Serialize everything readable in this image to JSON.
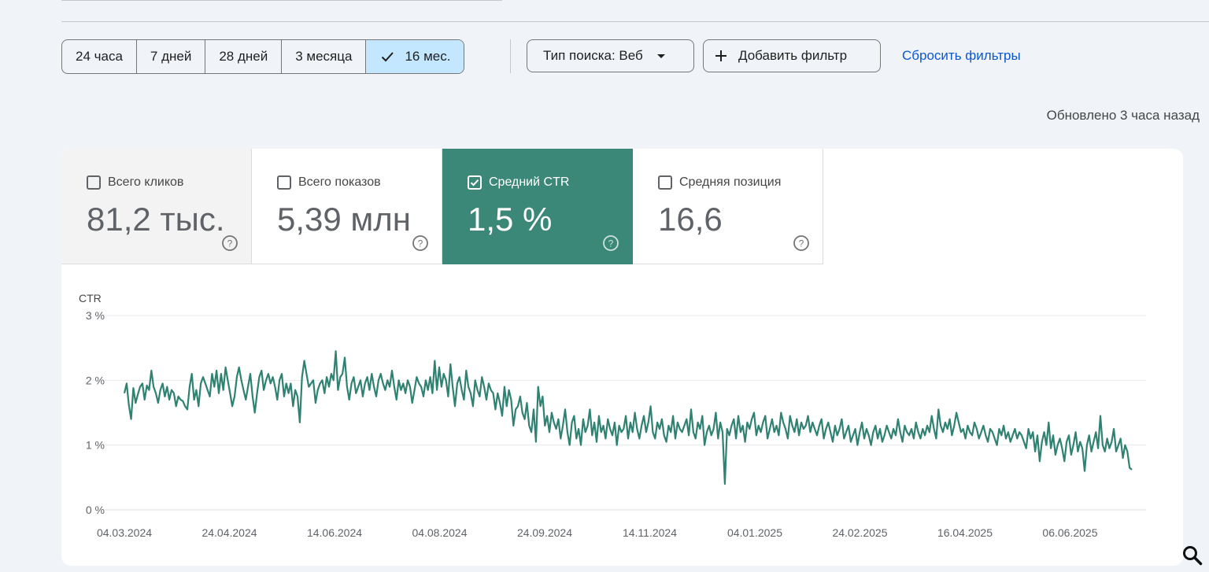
{
  "toolbar": {
    "ranges": [
      {
        "label": "24 часа",
        "active": false
      },
      {
        "label": "7 дней",
        "active": false
      },
      {
        "label": "28 дней",
        "active": false
      },
      {
        "label": "3 месяца",
        "active": false
      },
      {
        "label": "16 мес.",
        "active": true
      }
    ],
    "search_type_label": "Тип поиска: Веб",
    "add_filter_label": "Добавить фильтр",
    "reset_filters_label": "Сбросить фильтры"
  },
  "updated_text": "Обновлено 3 часа назад",
  "metrics": [
    {
      "label": "Всего кликов",
      "value": "81,2 тыс.",
      "checked": false
    },
    {
      "label": "Всего показов",
      "value": "5,39 млн",
      "checked": false
    },
    {
      "label": "Средний CTR",
      "value": "1,5 %",
      "checked": true
    },
    {
      "label": "Средняя позиция",
      "value": "16,6",
      "checked": false
    }
  ],
  "colors": {
    "accent_blue": "#0b57d0",
    "active_range_bg": "#c2e7ff",
    "ctr_green": "#3b8778",
    "line_color": "#2f8272"
  },
  "chart_data": {
    "type": "line",
    "ylabel": "CTR",
    "ylim": [
      0,
      3
    ],
    "y_ticks": [
      "3 %",
      "2 %",
      "1 %",
      "0 %"
    ],
    "y_tick_values": [
      3,
      2,
      1,
      0
    ],
    "x_ticks": [
      "04.03.2024",
      "24.04.2024",
      "14.06.2024",
      "04.08.2024",
      "24.09.2024",
      "14.11.2024",
      "04.01.2025",
      "24.02.2025",
      "16.04.2025",
      "06.06.2025"
    ],
    "x_start": "2024-03-04",
    "x_end": "2025-07-06",
    "grid": true,
    "series": [
      {
        "values": [
          1.8,
          1.95,
          1.62,
          1.4,
          1.88,
          1.65,
          1.78,
          1.9,
          1.95,
          1.7,
          1.92,
          1.85,
          2.15,
          1.9,
          1.8,
          1.65,
          1.85,
          1.95,
          1.75,
          1.9,
          1.7,
          1.85,
          1.8,
          1.6,
          1.75,
          1.7,
          1.68,
          1.6,
          1.55,
          1.9,
          2.1,
          1.7,
          1.85,
          1.6,
          1.95,
          2.05,
          1.95,
          1.85,
          1.75,
          2.1,
          1.9,
          2.15,
          1.8,
          2.1,
          1.85,
          2.2,
          2.0,
          1.8,
          1.6,
          1.75,
          2.05,
          2.2,
          2.0,
          1.85,
          1.7,
          1.9,
          2.1,
          1.75,
          1.5,
          1.8,
          2.05,
          2.15,
          1.85,
          2.0,
          2.1,
          1.95,
          2.05,
          1.9,
          1.7,
          2.0,
          2.1,
          1.75,
          1.95,
          1.8,
          1.95,
          1.6,
          1.85,
          1.75,
          1.35,
          2.05,
          2.3,
          2.1,
          1.9,
          1.95,
          2.0,
          1.65,
          1.85,
          1.95,
          2.0,
          1.8,
          2.05,
          1.9,
          2.1,
          2.0,
          2.45,
          1.85,
          2.05,
          2.1,
          2.35,
          1.9,
          1.7,
          1.95,
          2.05,
          1.8,
          1.9,
          2.0,
          1.75,
          1.95,
          2.05,
          1.85,
          2.1,
          1.9,
          1.75,
          2.0,
          2.1,
          1.95,
          1.85,
          2.0,
          1.9,
          2.15,
          1.9,
          1.7,
          2.0,
          1.85,
          1.95,
          1.8,
          2.0,
          1.9,
          1.65,
          1.85,
          2.05,
          1.95,
          1.9,
          1.75,
          2.0,
          1.85,
          2.05,
          1.8,
          2.3,
          1.85,
          2.2,
          1.9,
          2.1,
          2.0,
          1.75,
          2.25,
          1.9,
          1.6,
          1.95,
          2.05,
          1.85,
          1.7,
          2.15,
          1.9,
          1.8,
          1.6,
          2.0,
          1.85,
          1.75,
          2.05,
          1.9,
          1.7,
          1.95,
          1.85,
          1.8,
          1.55,
          1.8,
          1.65,
          1.45,
          1.9,
          1.6,
          1.85,
          1.7,
          1.3,
          1.55,
          1.6,
          1.75,
          1.5,
          1.4,
          1.65,
          1.3,
          1.2,
          1.55,
          1.05,
          1.9,
          1.6,
          1.75,
          1.3,
          1.45,
          1.2,
          1.5,
          1.35,
          1.25,
          1.4,
          1.1,
          1.3,
          1.55,
          1.2,
          1.0,
          1.35,
          1.45,
          1.1,
          1.25,
          1.0,
          1.4,
          1.2,
          1.3,
          1.55,
          1.15,
          1.35,
          1.05,
          1.45,
          1.2,
          1.3,
          1.1,
          1.4,
          1.25,
          1.15,
          1.35,
          1.0,
          1.3,
          1.2,
          1.25,
          1.45,
          1.1,
          1.35,
          1.2,
          1.5,
          1.25,
          1.1,
          1.3,
          1.45,
          1.2,
          1.35,
          1.6,
          1.2,
          1.1,
          1.35,
          1.25,
          1.4,
          1.15,
          1.05,
          1.3,
          1.2,
          1.45,
          1.1,
          1.35,
          1.25,
          1.2,
          1.3,
          1.4,
          1.15,
          1.55,
          1.2,
          1.1,
          1.35,
          1.25,
          1.45,
          1.0,
          1.2,
          1.3,
          1.15,
          1.25,
          1.5,
          1.1,
          1.35,
          1.2,
          0.4,
          1.25,
          1.15,
          1.3,
          1.4,
          1.1,
          1.45,
          1.2,
          1.3,
          1.05,
          1.35,
          1.25,
          1.4,
          1.5,
          1.15,
          1.3,
          1.2,
          1.35,
          1.45,
          1.1,
          1.25,
          1.4,
          1.2,
          1.3,
          1.15,
          1.5,
          1.35,
          1.25,
          1.1,
          1.45,
          1.3,
          1.2,
          1.4,
          1.15,
          1.35,
          1.25,
          1.3,
          1.45,
          1.2,
          1.35,
          1.25,
          1.15,
          1.3,
          1.4,
          1.1,
          1.25,
          1.35,
          1.2,
          1.05,
          1.3,
          1.15,
          1.25,
          1.4,
          1.1,
          1.2,
          1.3,
          1.05,
          1.15,
          1.25,
          1.0,
          1.2,
          1.35,
          1.1,
          1.25,
          1.15,
          1.0,
          1.2,
          1.3,
          1.1,
          1.25,
          1.05,
          1.15,
          1.3,
          1.2,
          1.1,
          1.25,
          1.15,
          1.4,
          1.2,
          1.05,
          1.3,
          1.2,
          1.15,
          1.25,
          1.1,
          1.35,
          1.2,
          1.1,
          1.25,
          1.15,
          1.3,
          1.2,
          1.45,
          1.25,
          1.1,
          1.55,
          1.3,
          1.2,
          1.35,
          1.25,
          1.4,
          1.15,
          1.3,
          1.5,
          1.35,
          1.2,
          1.25,
          1.1,
          1.3,
          1.2,
          1.15,
          1.35,
          1.25,
          1.1,
          1.2,
          1.3,
          1.15,
          1.05,
          1.25,
          1.2,
          1.1,
          1.0,
          1.25,
          1.15,
          1.3,
          1.1,
          1.2,
          1.05,
          1.15,
          1.25,
          1.1,
          1.2,
          1.15,
          1.05,
          0.95,
          1.25,
          1.1,
          1.2,
          0.9,
          1.15,
          0.75,
          1.05,
          1.2,
          1.0,
          1.35,
          0.95,
          1.15,
          0.85,
          1.0,
          1.1,
          0.95,
          0.75,
          1.05,
          1.15,
          0.85,
          1.0,
          1.2,
          0.9,
          1.05,
          0.95,
          0.6,
          1.0,
          1.15,
          0.9,
          1.05,
          1.2,
          0.95,
          1.45,
          1.0,
          0.9,
          1.1,
          0.95,
          1.05,
          1.25,
          0.9,
          1.0,
          1.1,
          0.8,
          1.0,
          0.9,
          0.65,
          0.62
        ]
      }
    ]
  }
}
